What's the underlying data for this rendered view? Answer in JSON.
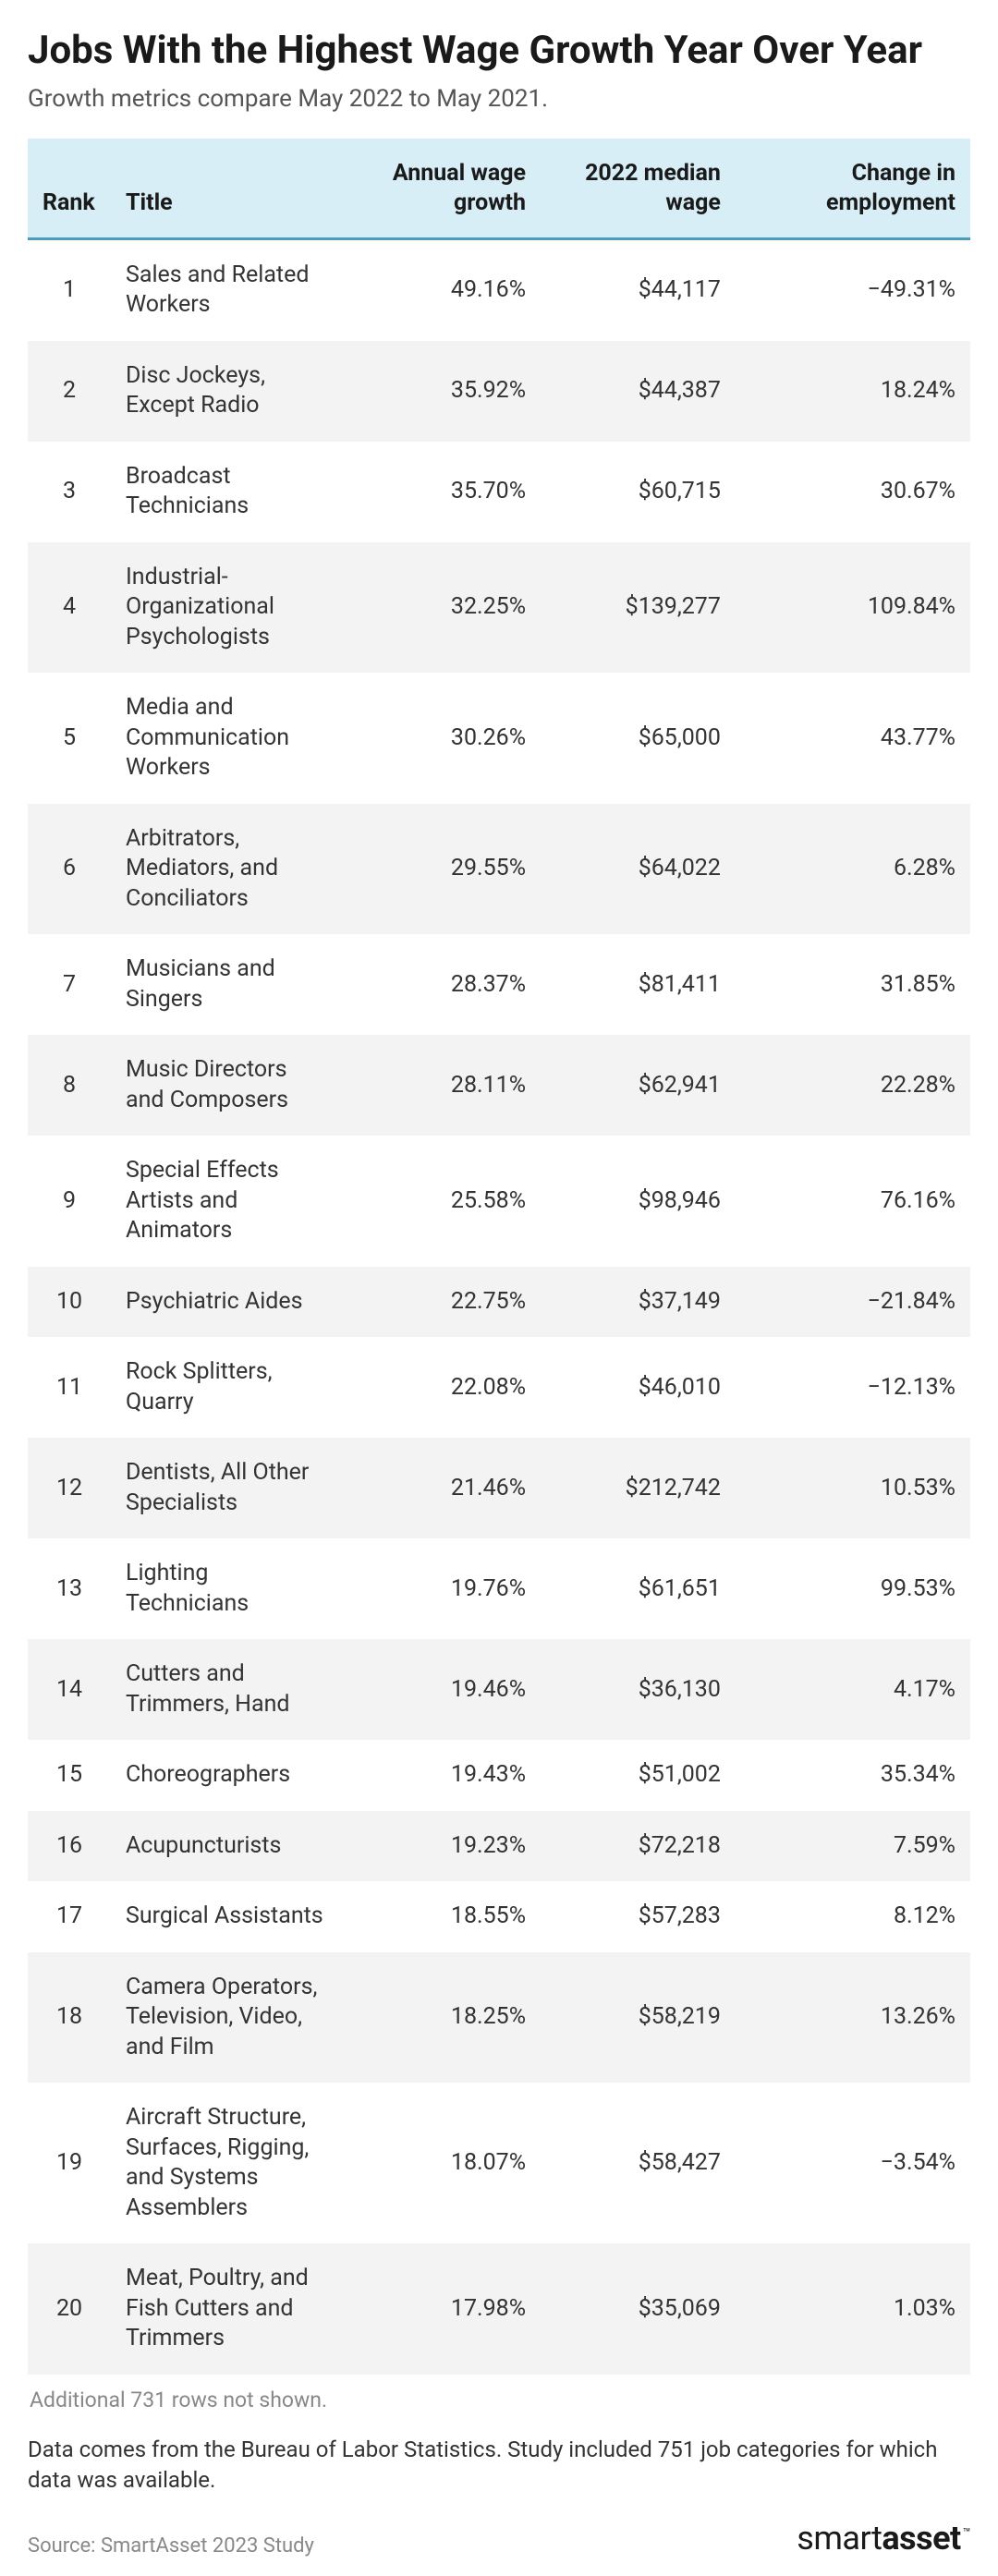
{
  "header": {
    "title": "Jobs With the Highest Wage Growth Year Over Year",
    "subtitle": "Growth metrics compare May 2022 to May 2021."
  },
  "table": {
    "columns": {
      "rank": "Rank",
      "title": "Title",
      "growth": "Annual wage growth",
      "median": "2022 median wage",
      "change": "Change in employment"
    },
    "header_bg": "#d7eef6",
    "header_border": "#4a9db8",
    "row_alt_bg": "#f3f3f3",
    "rows": [
      {
        "rank": "1",
        "title": "Sales and Related Workers",
        "growth": "49.16%",
        "median": "$44,117",
        "change": "−49.31%"
      },
      {
        "rank": "2",
        "title": "Disc Jockeys, Except Radio",
        "growth": "35.92%",
        "median": "$44,387",
        "change": "18.24%"
      },
      {
        "rank": "3",
        "title": "Broadcast Technicians",
        "growth": "35.70%",
        "median": "$60,715",
        "change": "30.67%"
      },
      {
        "rank": "4",
        "title": "Industrial-Organizational Psychologists",
        "growth": "32.25%",
        "median": "$139,277",
        "change": "109.84%"
      },
      {
        "rank": "5",
        "title": "Media and Communication Workers",
        "growth": "30.26%",
        "median": "$65,000",
        "change": "43.77%"
      },
      {
        "rank": "6",
        "title": "Arbitrators, Mediators, and Conciliators",
        "growth": "29.55%",
        "median": "$64,022",
        "change": "6.28%"
      },
      {
        "rank": "7",
        "title": "Musicians and Singers",
        "growth": "28.37%",
        "median": "$81,411",
        "change": "31.85%"
      },
      {
        "rank": "8",
        "title": "Music Directors and Composers",
        "growth": "28.11%",
        "median": "$62,941",
        "change": "22.28%"
      },
      {
        "rank": "9",
        "title": "Special Effects Artists and Animators",
        "growth": "25.58%",
        "median": "$98,946",
        "change": "76.16%"
      },
      {
        "rank": "10",
        "title": "Psychiatric Aides",
        "growth": "22.75%",
        "median": "$37,149",
        "change": "−21.84%"
      },
      {
        "rank": "11",
        "title": "Rock Splitters, Quarry",
        "growth": "22.08%",
        "median": "$46,010",
        "change": "−12.13%"
      },
      {
        "rank": "12",
        "title": "Dentists, All Other Specialists",
        "growth": "21.46%",
        "median": "$212,742",
        "change": "10.53%"
      },
      {
        "rank": "13",
        "title": "Lighting Technicians",
        "growth": "19.76%",
        "median": "$61,651",
        "change": "99.53%"
      },
      {
        "rank": "14",
        "title": "Cutters and Trimmers, Hand",
        "growth": "19.46%",
        "median": "$36,130",
        "change": "4.17%"
      },
      {
        "rank": "15",
        "title": "Choreographers",
        "growth": "19.43%",
        "median": "$51,002",
        "change": "35.34%"
      },
      {
        "rank": "16",
        "title": "Acupuncturists",
        "growth": "19.23%",
        "median": "$72,218",
        "change": "7.59%"
      },
      {
        "rank": "17",
        "title": "Surgical Assistants",
        "growth": "18.55%",
        "median": "$57,283",
        "change": "8.12%"
      },
      {
        "rank": "18",
        "title": "Camera Operators, Television, Video, and Film",
        "growth": "18.25%",
        "median": "$58,219",
        "change": "13.26%"
      },
      {
        "rank": "19",
        "title": "Aircraft Structure, Surfaces, Rigging, and Systems Assemblers",
        "growth": "18.07%",
        "median": "$58,427",
        "change": "−3.54%"
      },
      {
        "rank": "20",
        "title": "Meat, Poultry, and Fish Cutters and Trimmers",
        "growth": "17.98%",
        "median": "$35,069",
        "change": "1.03%"
      }
    ]
  },
  "footer": {
    "more_rows": "Additional 731 rows not shown.",
    "data_note": "Data comes from the Bureau of Labor Statistics. Study included 751 job categories for which data was available.",
    "source": "Source: SmartAsset 2023 Study",
    "logo_part1": "smart",
    "logo_part2": "asset",
    "logo_tm": "™"
  }
}
